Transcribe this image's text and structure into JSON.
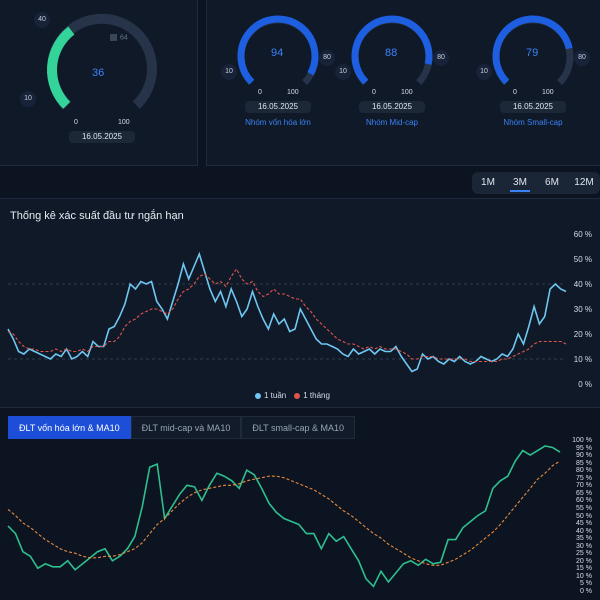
{
  "colors": {
    "accent": "#3b82f6",
    "green_gauge": "#34d399",
    "series_1week": "#6fc6f0",
    "series_1month": "#e0564b",
    "bottom_line": "#2fbf8f",
    "bottom_ma": "#e88a3e"
  },
  "header": {
    "avatar_icon": "brain-icon"
  },
  "gauges": {
    "main": {
      "value": "36",
      "min": "0",
      "max": "100",
      "left_label": "10",
      "top_label": "40",
      "inner_tag": "64",
      "date": "16.05.2025",
      "percent": 36
    },
    "small": [
      {
        "value": "94",
        "min": "0",
        "max": "100",
        "left_label": "10",
        "right_label": "80",
        "date": "16.05.2025",
        "name": "Nhóm vốn hóa lớn",
        "percent": 94
      },
      {
        "value": "88",
        "min": "0",
        "max": "100",
        "left_label": "10",
        "right_label": "80",
        "date": "16.05.2025",
        "name": "Nhóm Mid-cap",
        "percent": 88
      },
      {
        "value": "79",
        "min": "0",
        "max": "100",
        "left_label": "10",
        "right_label": "80",
        "date": "16.05.2025",
        "name": "Nhóm Small-cap",
        "percent": 79
      }
    ]
  },
  "periods": [
    "1M",
    "3M",
    "6M",
    "12M"
  ],
  "active_period": "3M",
  "top_chart": {
    "title": "Thống kê xác suất đầu tư ngắn hạn",
    "y_ticks": [
      "60 %",
      "50 %",
      "40 %",
      "30 %",
      "20 %",
      "10 %",
      "0 %"
    ],
    "legend": [
      "1 tuần",
      "1 tháng"
    ]
  },
  "tabs": [
    "ĐLT vốn hóa lớn & MA10",
    "ĐLT mid-cap và MA10",
    "ĐLT small-cap & MA10"
  ],
  "bottom_chart": {
    "y_ticks": [
      "100 %",
      "95 %",
      "90 %",
      "85 %",
      "80 %",
      "75 %",
      "70 %",
      "65 %",
      "60 %",
      "55 %",
      "50 %",
      "45 %",
      "40 %",
      "35 %",
      "30 %",
      "25 %",
      "20 %",
      "15 %",
      "10 %",
      "5 %",
      "0 %"
    ]
  },
  "chart_data": [
    {
      "type": "line",
      "title": "Thống kê xác suất đầu tư ngắn hạn",
      "ylim": [
        0,
        60
      ],
      "series": [
        {
          "name": "1 tuần",
          "values": [
            22,
            18,
            13,
            12,
            14,
            13,
            12,
            11,
            10,
            12,
            11,
            14,
            10,
            11,
            13,
            11,
            17,
            15,
            15,
            22,
            23,
            27,
            32,
            40,
            38,
            41,
            40,
            41,
            33,
            30,
            26,
            33,
            40,
            48,
            42,
            47,
            52,
            45,
            38,
            33,
            37,
            31,
            38,
            33,
            27,
            30,
            37,
            31,
            26,
            22,
            28,
            24,
            26,
            21,
            22,
            30,
            26,
            22,
            18,
            16,
            16,
            15,
            14,
            12,
            11,
            14,
            12,
            13,
            14,
            12,
            14,
            13,
            13,
            15,
            11,
            8,
            5,
            6,
            12,
            10,
            11,
            9,
            8,
            10,
            9,
            11,
            9,
            8,
            9,
            11,
            10,
            9,
            10,
            12,
            11,
            14,
            20,
            16,
            23,
            31,
            24,
            27,
            38,
            40,
            38,
            37
          ]
        },
        {
          "name": "1 tháng",
          "values": [
            21,
            20,
            17,
            15,
            14,
            14,
            13,
            13,
            13,
            14,
            13,
            14,
            13,
            13,
            14,
            13,
            15,
            15,
            15,
            17,
            17,
            19,
            23,
            25,
            26,
            28,
            29,
            30,
            30,
            29,
            28,
            30,
            34,
            37,
            38,
            40,
            43,
            44,
            42,
            40,
            41,
            39,
            43,
            46,
            42,
            40,
            41,
            37,
            35,
            36,
            38,
            36,
            36,
            35,
            34,
            34,
            31,
            29,
            26,
            24,
            22,
            20,
            18,
            17,
            16,
            16,
            15,
            14,
            15,
            14,
            15,
            14,
            14,
            14,
            13,
            12,
            10,
            10,
            11,
            11,
            11,
            10,
            10,
            10,
            10,
            10,
            10,
            9,
            9,
            9,
            9,
            9,
            9,
            10,
            10,
            11,
            12,
            13,
            14,
            16,
            17,
            17,
            17,
            17,
            17,
            16
          ]
        }
      ]
    },
    {
      "type": "line",
      "title": "ĐLT vốn hóa lớn & MA10",
      "ylim": [
        0,
        100
      ],
      "series": [
        {
          "name": "ĐLT",
          "values": [
            45,
            40,
            28,
            25,
            17,
            20,
            18,
            18,
            22,
            16,
            20,
            24,
            28,
            30,
            22,
            25,
            30,
            38,
            58,
            84,
            86,
            50,
            58,
            66,
            72,
            71,
            62,
            72,
            80,
            78,
            75,
            70,
            82,
            79,
            70,
            60,
            54,
            50,
            48,
            46,
            40,
            40,
            30,
            40,
            35,
            38,
            30,
            22,
            10,
            5,
            15,
            8,
            14,
            20,
            22,
            19,
            23,
            20,
            21,
            36,
            36,
            44,
            48,
            52,
            55,
            70,
            75,
            78,
            88,
            95,
            92,
            95,
            98,
            97,
            94
          ]
        },
        {
          "name": "MA10",
          "values": [
            56,
            52,
            47,
            44,
            40,
            36,
            33,
            30,
            28,
            27,
            25,
            24,
            24,
            25,
            25,
            26,
            28,
            30,
            34,
            40,
            46,
            50,
            55,
            60,
            64,
            67,
            69,
            70,
            71,
            72,
            72,
            73,
            75,
            76,
            77,
            78,
            78,
            77,
            75,
            73,
            71,
            69,
            66,
            63,
            59,
            55,
            52,
            48,
            44,
            40,
            37,
            33,
            30,
            27,
            24,
            22,
            20,
            19,
            19,
            21,
            23,
            26,
            29,
            33,
            37,
            41,
            46,
            52,
            58,
            64,
            70,
            76,
            80,
            85,
            88
          ]
        }
      ]
    }
  ]
}
